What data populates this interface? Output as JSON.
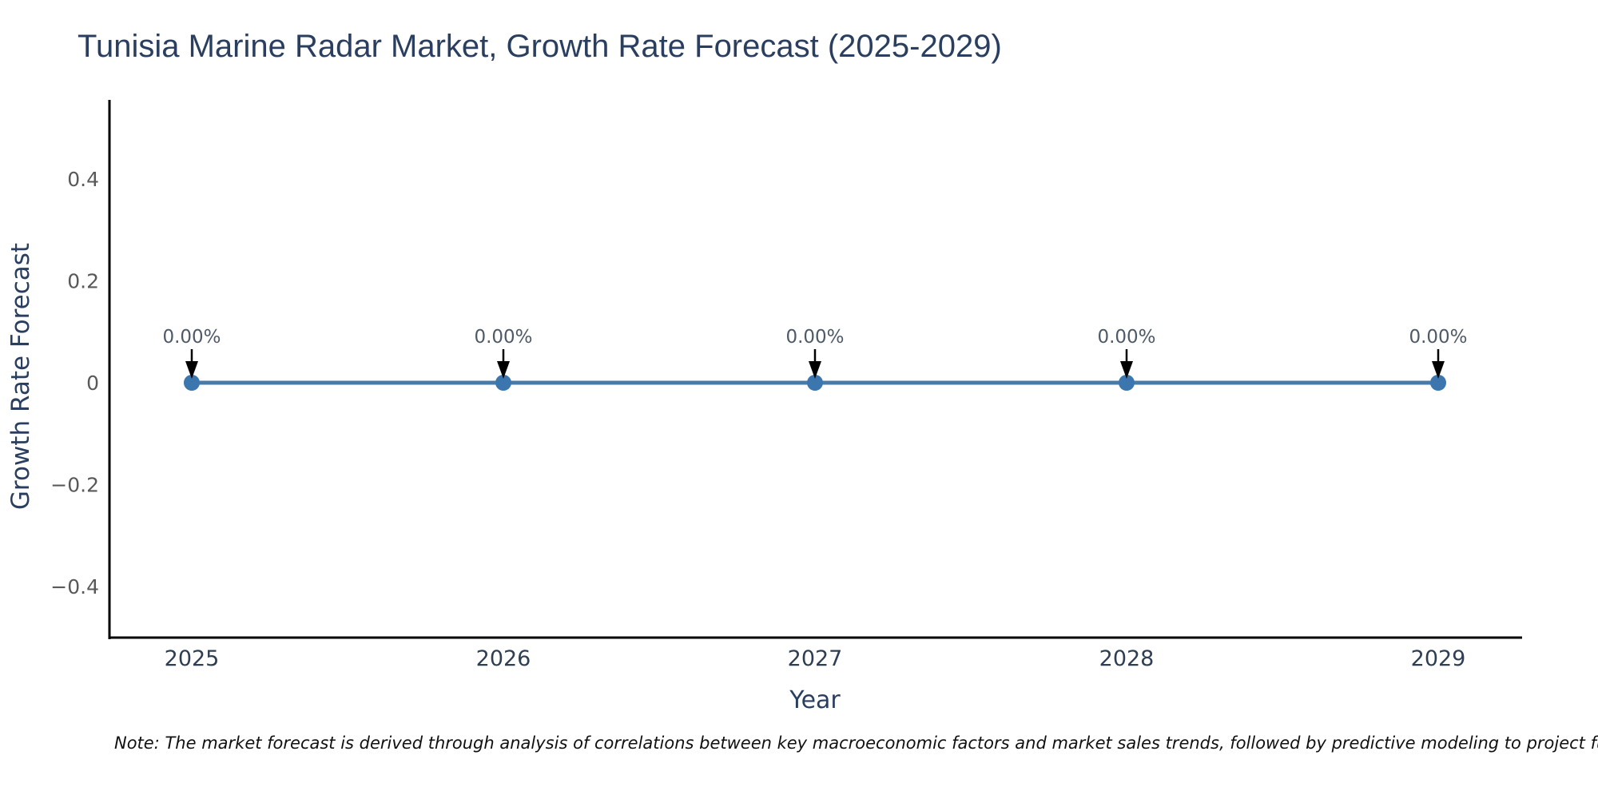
{
  "note": "Note: The market forecast is derived through analysis of correlations between key macroeconomic factors and market sales trends, followed by predictive modeling to project future sa",
  "chart_data": {
    "type": "line",
    "title": "Tunisia Marine Radar Market, Growth Rate Forecast (2025-2029)",
    "xlabel": "Year",
    "ylabel": "Growth Rate Forecast",
    "categories": [
      "2025",
      "2026",
      "2027",
      "2028",
      "2029"
    ],
    "series": [
      {
        "name": "Growth Rate Forecast",
        "values": [
          0,
          0,
          0,
          0,
          0
        ]
      }
    ],
    "point_labels": [
      "0.00%",
      "0.00%",
      "0.00%",
      "0.00%",
      "0.00%"
    ],
    "yticks": [
      0.4,
      0.2,
      0,
      -0.2,
      -0.4
    ],
    "ytick_labels": [
      "0.4",
      "0.2",
      "0",
      "−0.2",
      "−0.4"
    ],
    "ylim": [
      -0.5,
      0.55
    ],
    "grid": false,
    "legend": false,
    "annotation_style": "down-arrow",
    "colors": {
      "line": "#4a7ba6",
      "marker": "#3c76af",
      "axis": "#000000",
      "arrow": "#000000",
      "title_text": "#2a3f5f",
      "x_tick_text": "#2e3e54",
      "y_tick_text": "#595959",
      "annotation_text": "#4e5a68",
      "note_text": "#111111"
    }
  }
}
